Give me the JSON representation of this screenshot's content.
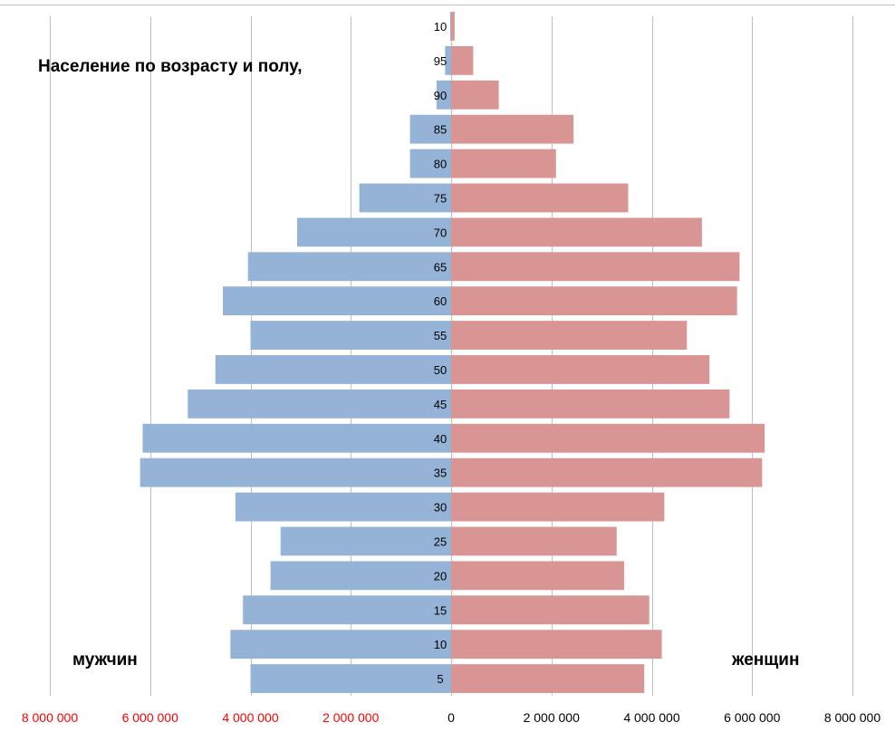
{
  "title": "Население по возрасту и полу,",
  "labels": {
    "male": "мужчин",
    "female": "женщин"
  },
  "colors": {
    "male": "#95b3d7",
    "female": "#d99594",
    "neg_tick": "#ff0000",
    "pos_tick": "#000000",
    "grid": "#bfbfbf"
  },
  "chart_data": {
    "type": "bar",
    "orientation": "horizontal",
    "title": "Население по возрасту и полу,",
    "categories": [
      "5",
      "10",
      "15",
      "20",
      "25",
      "30",
      "35",
      "40",
      "45",
      "50",
      "55",
      "60",
      "65",
      "70",
      "75",
      "80",
      "85",
      "90",
      "95",
      "10"
    ],
    "series": [
      {
        "name": "мужчин",
        "values": [
          -4000000,
          -4400000,
          -4150000,
          -3600000,
          -3400000,
          -4300000,
          -6200000,
          -6150000,
          -5250000,
          -4700000,
          -4000000,
          -4550000,
          -4050000,
          -3070000,
          -1830000,
          -820000,
          -820000,
          -290000,
          -120000,
          -20000
        ]
      },
      {
        "name": "женщин",
        "values": [
          3850000,
          4200000,
          3950000,
          3450000,
          3300000,
          4250000,
          6200000,
          6250000,
          5550000,
          5150000,
          4700000,
          5700000,
          5750000,
          5000000,
          3530000,
          2090000,
          2440000,
          950000,
          440000,
          70000
        ]
      }
    ],
    "xlim": [
      -8000000,
      8000000
    ],
    "xticks": [
      -8000000,
      -6000000,
      -4000000,
      -2000000,
      0,
      2000000,
      4000000,
      6000000,
      8000000
    ],
    "xtick_labels": [
      "8 000 000",
      "6 000 000",
      "4 000 000",
      "2 000 000",
      "0",
      "2 000 000",
      "4 000 000",
      "6 000 000",
      "8 000 000"
    ],
    "grid": true
  }
}
